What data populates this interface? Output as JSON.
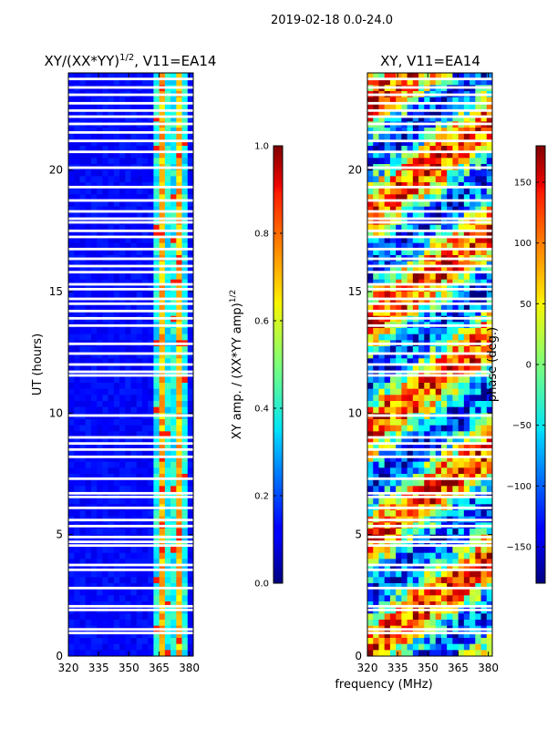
{
  "suptitle": "2019-02-18 0.0-24.0",
  "shared_xlabel": "frequency (MHz)",
  "chart_data": [
    {
      "type": "heatmap",
      "title_main": "XY/(XX*YY)",
      "title_sup": "1/2",
      "title_tail": ", V11=EA14",
      "xlabel": "",
      "ylabel": "UT (hours)",
      "x_range": [
        320,
        382
      ],
      "y_range": [
        0,
        24
      ],
      "x_ticks": [
        320,
        335,
        350,
        365,
        380
      ],
      "y_ticks": [
        0,
        5,
        10,
        15,
        20
      ],
      "colorbar": {
        "label_main": "XY amp. / (XX*YY amp)",
        "label_sup": "1/2",
        "range": [
          0.0,
          1.0
        ],
        "ticks": [
          "0.0",
          "0.2",
          "0.4",
          "0.6",
          "0.8",
          "1.0"
        ],
        "tick_values": [
          0.0,
          0.2,
          0.4,
          0.6,
          0.8,
          1.0
        ]
      }
    },
    {
      "type": "heatmap",
      "title_main": "XY, V11=EA14",
      "xlabel": "frequency (MHz)",
      "ylabel": "",
      "x_range": [
        320,
        382
      ],
      "y_range": [
        0,
        24
      ],
      "x_ticks": [
        320,
        335,
        350,
        365,
        380
      ],
      "y_ticks": [
        0,
        5,
        10,
        15,
        20
      ],
      "colorbar": {
        "label_main": "phase (deg.)",
        "range": [
          -180,
          180
        ],
        "ticks": [
          "150",
          "100",
          "50",
          "0",
          "−50",
          "−100",
          "−150"
        ],
        "tick_values": [
          150,
          100,
          50,
          0,
          -50,
          -100,
          -150
        ]
      }
    }
  ],
  "flag_rows_hours": [
    0.95,
    1.1,
    1.9,
    2.05,
    2.8,
    3.55,
    3.75,
    4.55,
    4.7,
    4.9,
    5.35,
    5.6,
    6.1,
    6.55,
    6.7,
    7.3,
    8.2,
    8.5,
    8.75,
    9.0,
    9.9,
    11.55,
    11.7,
    12.0,
    12.45,
    12.85,
    13.6,
    13.9,
    14.2,
    14.5,
    14.7,
    15.1,
    15.3,
    15.8,
    16.05,
    16.35,
    16.75,
    17.25,
    17.5,
    17.85,
    18.0,
    18.3,
    18.75,
    19.3,
    20.1,
    20.75,
    21.2,
    21.55,
    21.9,
    22.2,
    22.45,
    22.75,
    23.1,
    23.4,
    23.75
  ]
}
